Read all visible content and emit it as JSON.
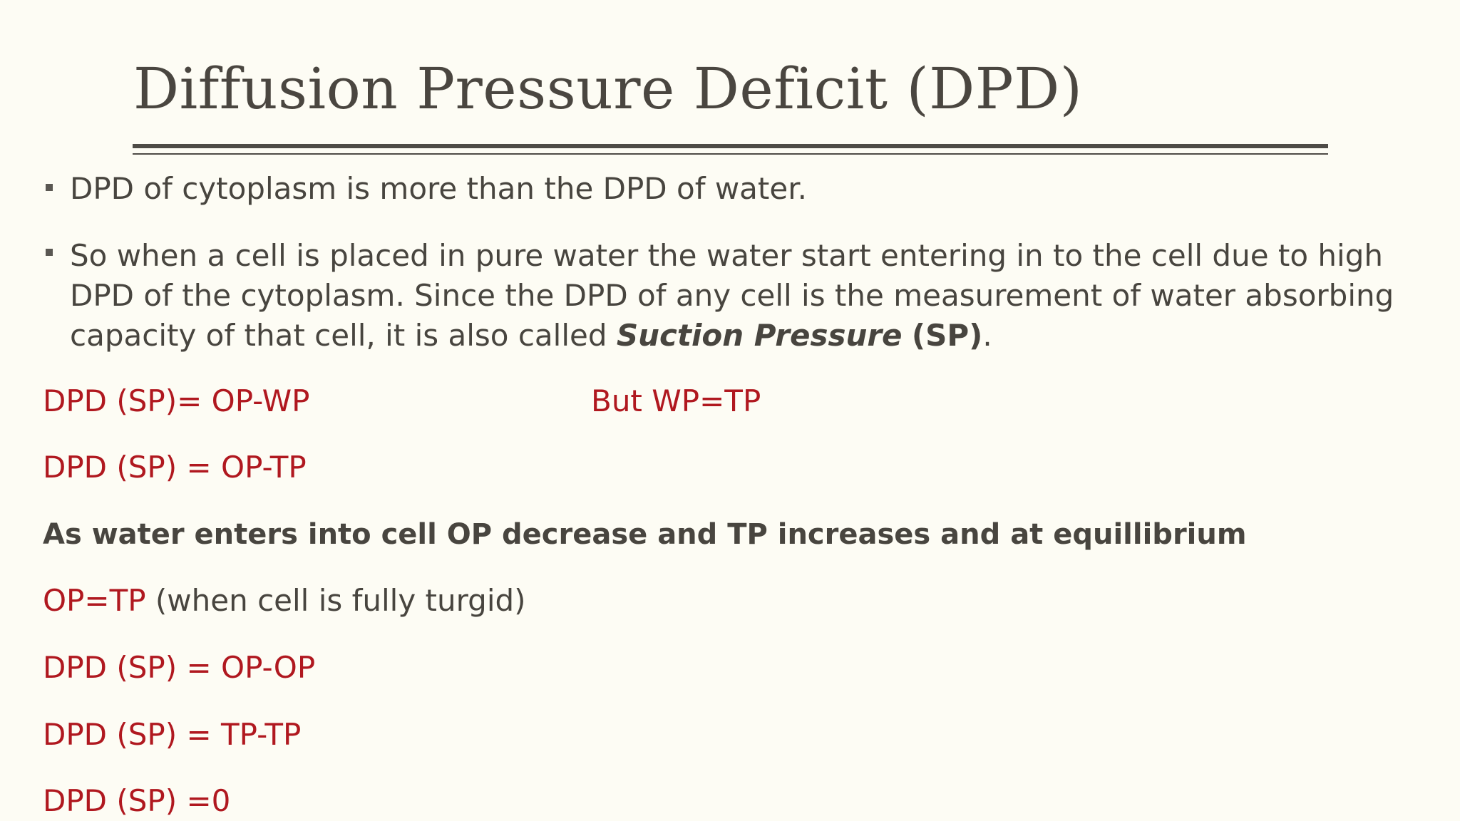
{
  "slide": {
    "title": "Diffusion Pressure Deficit (DPD)",
    "bullets": [
      {
        "text": "DPD of cytoplasm is more than the DPD of water."
      },
      {
        "line1": "So when a cell is placed in pure water the water start entering in to the cell due to high",
        "line2": "DPD of the cytoplasm. Since the DPD of any cell is the measurement of water absorbing",
        "line3_prefix": "capacity of that cell, it is also called ",
        "line3_emphasis": "Suction Pressure",
        "line3_space": " ",
        "line3_abbr": "(SP)",
        "line3_suffix": "."
      }
    ],
    "equations": {
      "eq1": "DPD (SP)= OP-WP",
      "eq1_note": "But WP=TP",
      "eq2": "DPD (SP) = OP-TP",
      "statement": "As water enters into cell OP decrease and TP increases and at equillibrium",
      "eq3_red": "OP=TP",
      "eq3_note": " (when cell is fully turgid)",
      "eq4": "DPD (SP) = OP-OP",
      "eq5": "DPD (SP) = TP-TP",
      "eq6": "DPD (SP) =0"
    },
    "colors": {
      "background": "#fdfcf4",
      "title": "#4a4640",
      "body_text": "#48453f",
      "equation_red": "#b0181f",
      "rule": "#4e4b46"
    }
  }
}
